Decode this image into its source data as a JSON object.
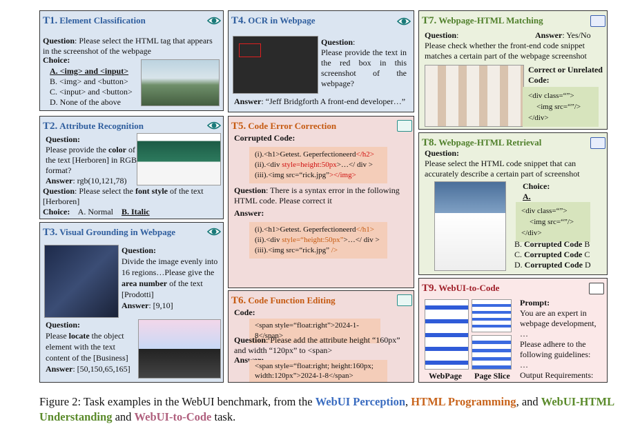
{
  "panels": {
    "t1": {
      "label": "T1.",
      "title": "Element  Classification",
      "q": "Question",
      "q_text": ": Please select the HTML tag that appears in the screenshot of the webpage",
      "choice": "Choice:",
      "choices": [
        "A. <img> and <input>",
        "B. <img> and <button>",
        "C. <input> and <button>",
        "D. None of the above"
      ]
    },
    "t2": {
      "label": "T2.",
      "title": "Attribute Recognition",
      "q": "Question:",
      "s": [
        "Please provide the ",
        "color",
        " of the text [Herboren] in RGB format?"
      ],
      "a": "Answer",
      "a_text": ": rgb(10,121,78)",
      "q2": "Question",
      "s2": [
        ": Please select the ",
        "font style",
        " of the text [Herboren]"
      ],
      "choice": "Choice:",
      "choices": [
        "A. Normal",
        "B. Italic"
      ]
    },
    "t3": {
      "label": "T3.",
      "title": "Visual Grounding in Webpage",
      "q": "Question:",
      "s": [
        "Divide the image evenly into 16 regions…Please give the ",
        "area number",
        " of the text [Prodotti]"
      ],
      "a": "Answer",
      "a_text": ": [9,10]",
      "q2": "Question:",
      "s2": [
        "Please ",
        "locate",
        " the object element with the text content of the [Business]"
      ],
      "a2": "Answer",
      "a2_text": ": [50,150,65,165]"
    },
    "t4": {
      "label": "T4.",
      "title": "OCR in Webpage",
      "q": "Question",
      "q_text": "Please provide the text in the red box in this screenshot of the webpage?",
      "a": "Answer",
      "a_text": ": “Jeff Bridgforth A front-end developer…”"
    },
    "t5": {
      "label": "T5.",
      "title": "Code Error Correction",
      "corrupted": "Corrupted Code:",
      "code": [
        [
          "(i).<h1>Getest. Geperfectioneerd",
          "</h2>"
        ],
        [
          "(ii).<div ",
          "style=height:50px",
          ">…</ div >"
        ],
        [
          "(iii).<img  src=“rick.jpg”",
          "></img>"
        ]
      ],
      "q": "Question",
      "q_text": ":  There is a syntax error in the following HTML code.  Please correct it",
      "a": "Answer:",
      "answer": [
        [
          "(i).<h1>Getest. Geperfectioneerd",
          "</h1>"
        ],
        [
          "(ii).<div ",
          "style=“height:50px”",
          ">…</ div >"
        ],
        [
          "(iii).<img  src=“rick.jpg” ",
          "/>"
        ]
      ]
    },
    "t6": {
      "label": "T6.",
      "title": "Code Function Editing",
      "code_label": "Code:",
      "code": "<span style=“float:right”>2024-1-8</span>",
      "q": "Question",
      "q_text": ":  Please add the attribute height “160px” and width “120px” to <span>",
      "a": "Answer:",
      "answer": "<span style=“float:right; height:160px; width:120px”>2024-1-8</span>"
    },
    "t7": {
      "label": "T7.",
      "title": "Webpage-HTML Matching",
      "q": "Question",
      "a": "Answer",
      "a_text": ": Yes/No",
      "q_text": "Please check whether the front-end code snippet matches a certain part of the webpage screenshot",
      "code_label": "Correct or Unrelated Code:",
      "code": [
        "<div class=“”>",
        "<img src=“”/>",
        "</div>"
      ]
    },
    "t8": {
      "label": "T8.",
      "title": "Webpage-HTML Retrieval",
      "q": "Question:",
      "q_text": "Please select the HTML code snippet that can accurately describe a certain part of screenshot",
      "choice": "Choice:",
      "a": "A.",
      "code": [
        "<div class=“”>",
        "<img src=“”/>",
        "</div>"
      ],
      "others": [
        [
          "B. ",
          "Corrupted Code",
          " B"
        ],
        [
          "C.  ",
          "Corrupted Code",
          " C"
        ],
        [
          "D.  ",
          "Corrupted Code",
          " D"
        ]
      ]
    },
    "t9": {
      "label": "T9.",
      "title": "WebUI-to-Code",
      "prompt": "Prompt:",
      "lines": [
        "You are an expert in webpage development, …",
        "Please adhere to the following guidelines:",
        "…",
        "Output Requirements:"
      ],
      "img1": "WebPage",
      "img2": "Page Slice"
    }
  },
  "caption": [
    "Figure 2: Task examples in the WebUI benchmark, from the ",
    "WebUI Perception",
    ", ",
    "HTML Programming",
    ", and ",
    "WebUI-HTML Understanding",
    " and ",
    "WebUI-to-Code",
    " task."
  ]
}
